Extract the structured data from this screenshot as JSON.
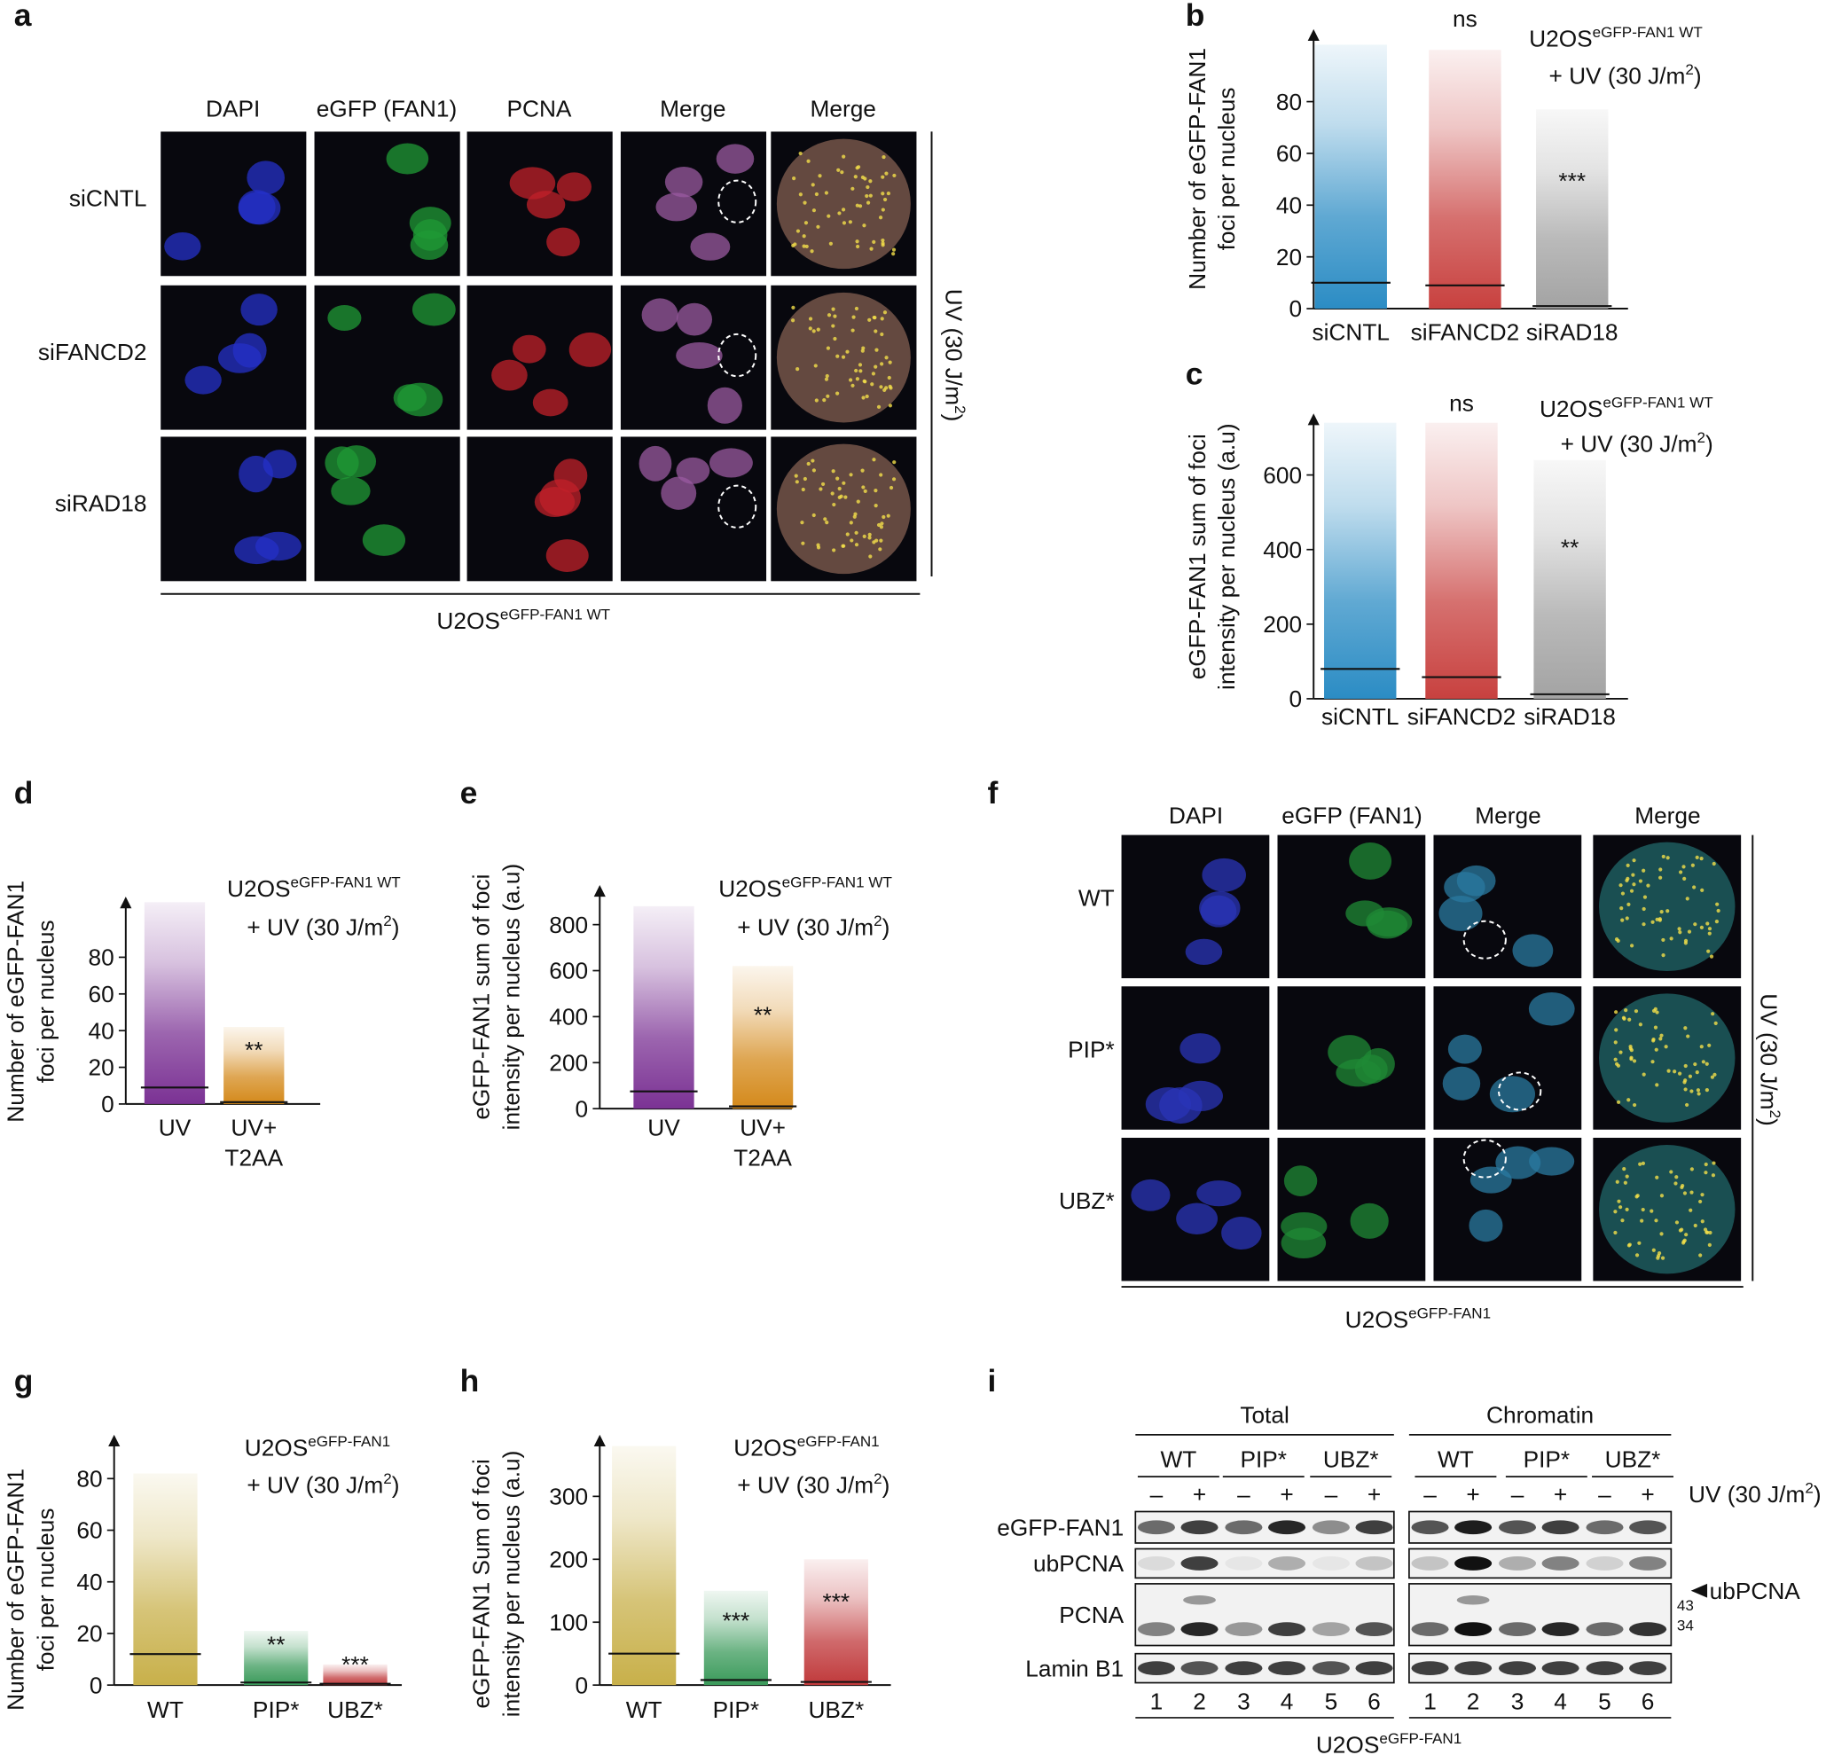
{
  "panel_letters": [
    "a",
    "b",
    "c",
    "d",
    "e",
    "f",
    "g",
    "h",
    "i"
  ],
  "panel_a": {
    "columns": [
      "DAPI",
      "eGFP (FAN1)",
      "PCNA",
      "Merge",
      "Merge"
    ],
    "rows": [
      "siCNTL",
      "siFANCD2",
      "siRAD18"
    ],
    "side_label": [
      "UV (30 J/m",
      "2",
      ")"
    ],
    "cell_line": [
      "U2OS",
      "eGFP-FAN1 WT"
    ]
  },
  "panel_f": {
    "columns": [
      "DAPI",
      "eGFP (FAN1)",
      "Merge",
      "Merge"
    ],
    "rows": [
      "WT",
      "PIP*",
      "UBZ*"
    ],
    "side_label": [
      "UV (30 J/m",
      "2",
      ")"
    ],
    "cell_line": [
      "U2OS",
      "eGFP-FAN1"
    ]
  },
  "panel_i": {
    "fractions": [
      "Total",
      "Chromatin"
    ],
    "groups": [
      "WT",
      "PIP*",
      "UBZ*",
      "WT",
      "PIP*",
      "UBZ*"
    ],
    "treatment": [
      "–",
      "+"
    ],
    "treatment_label": [
      "UV (30 J/m",
      "2",
      ")"
    ],
    "rows": [
      "eGFP-FAN1",
      "ubPCNA",
      "PCNA",
      "Lamin B1"
    ],
    "lanes": [
      1,
      2,
      3,
      4,
      5,
      6
    ],
    "markers": [
      "43",
      "34"
    ],
    "arrow_label": "ubPCNA",
    "cell_line": [
      "U2OS",
      "eGFP-FAN1"
    ]
  },
  "chart_data": [
    {
      "type": "strip",
      "ylabel": [
        "Number of eGFP-FAN1",
        "foci per nucleus"
      ],
      "annotation": {
        "line1": [
          "U2OS",
          "eGFP-FAN1 WT"
        ],
        "line2": [
          "+ UV (30 J/m",
          "2",
          ")"
        ]
      },
      "categories": [
        [
          "siCNTL"
        ],
        [
          "siFANCD2"
        ],
        [
          "siRAD18"
        ]
      ],
      "colors": [
        "#2b8cc4",
        "#c8413f",
        "#a3a3a3"
      ],
      "medians": [
        10,
        9,
        1
      ],
      "maxima": [
        102,
        100,
        77
      ],
      "significance": [
        null,
        "ns",
        "***"
      ],
      "ylim": [
        0,
        108
      ],
      "yticks": [
        0,
        20,
        40,
        60,
        80
      ]
    },
    {
      "type": "strip",
      "ylabel": [
        "eGFP-FAN1 sum of foci",
        "intensity per nucleus (a.u)"
      ],
      "annotation": {
        "line1": [
          "U2OS",
          "eGFP-FAN1 WT"
        ],
        "line2": [
          "+ UV (30 J/m",
          "2",
          ")"
        ]
      },
      "categories": [
        [
          "siCNTL"
        ],
        [
          "siFANCD2"
        ],
        [
          "siRAD18"
        ]
      ],
      "colors": [
        "#2b8cc4",
        "#c8413f",
        "#a3a3a3"
      ],
      "medians": [
        80,
        58,
        12
      ],
      "maxima": [
        740,
        740,
        640
      ],
      "significance": [
        null,
        "ns",
        "**"
      ],
      "ylim": [
        0,
        765
      ],
      "yticks": [
        0,
        200,
        400,
        600
      ]
    },
    {
      "type": "strip",
      "ylabel": [
        "Number of eGFP-FAN1",
        "foci per nucleus"
      ],
      "annotation": {
        "line1": [
          "U2OS",
          "eGFP-FAN1 WT"
        ],
        "line2": [
          "+ UV (30 J/m",
          "2",
          ")"
        ]
      },
      "categories": [
        [
          "UV"
        ],
        [
          "UV+",
          "T2AA"
        ]
      ],
      "colors": [
        "#7b3294",
        "#d4891a"
      ],
      "medians": [
        9,
        1
      ],
      "maxima": [
        110,
        42
      ],
      "significance": [
        null,
        "**"
      ],
      "ylim": [
        0,
        113
      ],
      "yticks": [
        0,
        20,
        40,
        60,
        80
      ]
    },
    {
      "type": "strip",
      "ylabel": [
        "eGFP-FAN1 sum of foci",
        "intensity per nucleus (a.u)"
      ],
      "annotation": {
        "line1": [
          "U2OS",
          "eGFP-FAN1 WT"
        ],
        "line2": [
          "+ UV (30 J/m",
          "2",
          ")"
        ]
      },
      "categories": [
        [
          "UV"
        ],
        [
          "UV+",
          "T2AA"
        ]
      ],
      "colors": [
        "#7b3294",
        "#d4891a"
      ],
      "medians": [
        75,
        10
      ],
      "maxima": [
        880,
        620
      ],
      "significance": [
        null,
        "**"
      ],
      "ylim": [
        0,
        972
      ],
      "yticks": [
        0,
        200,
        400,
        600,
        800
      ]
    },
    {
      "type": "strip",
      "ylabel": [
        "Number of eGFP-FAN1",
        "foci per nucleus"
      ],
      "annotation": {
        "line1": [
          "U2OS",
          "eGFP-FAN1"
        ],
        "line2": [
          "+ UV (30 J/m",
          "2",
          ")"
        ]
      },
      "categories": [
        [
          "WT"
        ],
        [
          "PIP*"
        ],
        [
          "UBZ*"
        ]
      ],
      "colors": [
        "#c8b04a",
        "#3a9a5a",
        "#c0393b"
      ],
      "medians": [
        12,
        1,
        0.5
      ],
      "maxima": [
        82,
        21,
        8
      ],
      "significance": [
        null,
        "**",
        "***"
      ],
      "ylim": [
        0,
        97
      ],
      "yticks": [
        0,
        20,
        40,
        60,
        80
      ]
    },
    {
      "type": "strip",
      "ylabel": [
        "eGFP-FAN1 Sum of foci",
        "intensity per nucleus (a.u)"
      ],
      "annotation": {
        "line1": [
          "U2OS",
          "eGFP-FAN1"
        ],
        "line2": [
          "+ UV (30 J/m",
          "2",
          ")"
        ]
      },
      "categories": [
        [
          "WT"
        ],
        [
          "PIP*"
        ],
        [
          "UBZ*"
        ]
      ],
      "colors": [
        "#c8b04a",
        "#3a9a5a",
        "#c0393b"
      ],
      "medians": [
        50,
        8,
        5
      ],
      "maxima": [
        380,
        150,
        200
      ],
      "significance": [
        null,
        "***",
        "***"
      ],
      "ylim": [
        0,
        398
      ],
      "yticks": [
        0,
        100,
        200,
        300
      ]
    }
  ]
}
